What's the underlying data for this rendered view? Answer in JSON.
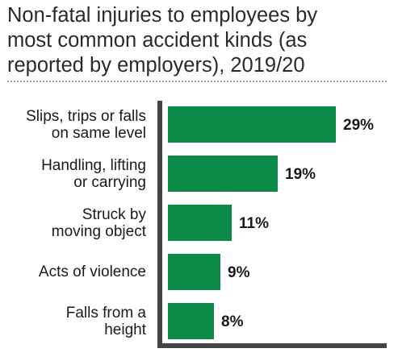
{
  "title_lines": [
    "Non-fatal injuries to employees by",
    "most common accident kinds (as",
    "reported by employers), 2019/20"
  ],
  "chart_data": {
    "type": "bar",
    "orientation": "horizontal",
    "title": "Non-fatal injuries to employees by most common accident kinds (as reported by employers), 2019/20",
    "categories": [
      [
        "Slips, trips or falls",
        "on same level"
      ],
      [
        "Handling, lifting",
        "or carrying"
      ],
      [
        "Struck by",
        "moving object"
      ],
      [
        "Acts of violence"
      ],
      [
        "Falls from a",
        "height"
      ]
    ],
    "values": [
      29,
      19,
      11,
      9,
      8
    ],
    "value_labels": [
      "29%",
      "19%",
      "11%",
      "9%",
      "8%"
    ],
    "unit": "%",
    "xlim": [
      0,
      29
    ],
    "bar_color": "#0b8a48",
    "axis_color": "#444444",
    "grid": false,
    "legend": "none"
  }
}
